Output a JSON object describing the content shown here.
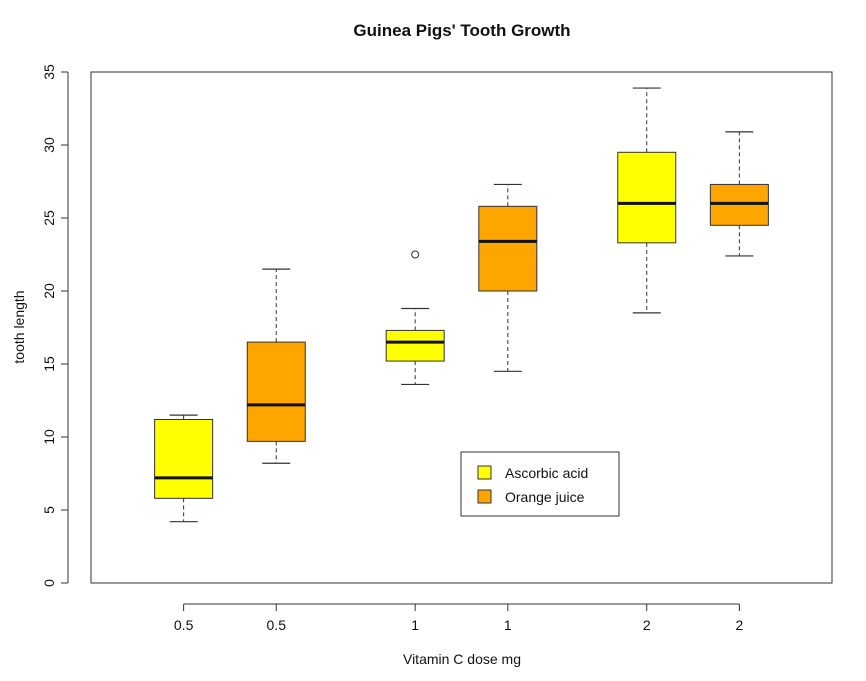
{
  "chart_data": {
    "type": "box",
    "title": "Guinea Pigs' Tooth Growth",
    "xlabel": "Vitamin C dose mg",
    "ylabel": "tooth length",
    "ylim": [
      0,
      35
    ],
    "yticks": [
      0,
      5,
      10,
      15,
      20,
      25,
      30,
      35
    ],
    "categories": [
      "0.5",
      "0.5",
      "1",
      "1",
      "2",
      "2"
    ],
    "boxes": [
      {
        "label": "0.5",
        "group": "Ascorbic acid",
        "position": 1.0,
        "whisker_low": 4.2,
        "q1": 5.8,
        "median": 7.2,
        "q3": 11.2,
        "whisker_high": 11.5,
        "outliers": []
      },
      {
        "label": "0.5",
        "group": "Orange juice",
        "position": 2.0,
        "whisker_low": 8.2,
        "q1": 9.7,
        "median": 12.2,
        "q3": 16.5,
        "whisker_high": 21.5,
        "outliers": []
      },
      {
        "label": "1",
        "group": "Ascorbic acid",
        "position": 3.5,
        "whisker_low": 13.6,
        "q1": 15.2,
        "median": 16.5,
        "q3": 17.3,
        "whisker_high": 18.8,
        "outliers": [
          22.5
        ]
      },
      {
        "label": "1",
        "group": "Orange juice",
        "position": 4.5,
        "whisker_low": 14.5,
        "q1": 20.0,
        "median": 23.4,
        "q3": 25.8,
        "whisker_high": 27.3,
        "outliers": []
      },
      {
        "label": "2",
        "group": "Ascorbic acid",
        "position": 6.0,
        "whisker_low": 18.5,
        "q1": 23.3,
        "median": 26.0,
        "q3": 29.5,
        "whisker_high": 33.9,
        "outliers": []
      },
      {
        "label": "2",
        "group": "Orange juice",
        "position": 7.0,
        "whisker_low": 22.4,
        "q1": 24.5,
        "median": 26.0,
        "q3": 27.3,
        "whisker_high": 30.9,
        "outliers": []
      }
    ],
    "xlim": [
      0.0,
      8.0
    ],
    "legend": {
      "placement": "bottom-center",
      "entries": [
        {
          "label": "Ascorbic acid",
          "color": "#ffff00"
        },
        {
          "label": "Orange juice",
          "color": "#ffa500"
        }
      ]
    },
    "colors": {
      "Ascorbic acid": "#ffff00",
      "Orange juice": "#ffa500"
    }
  }
}
